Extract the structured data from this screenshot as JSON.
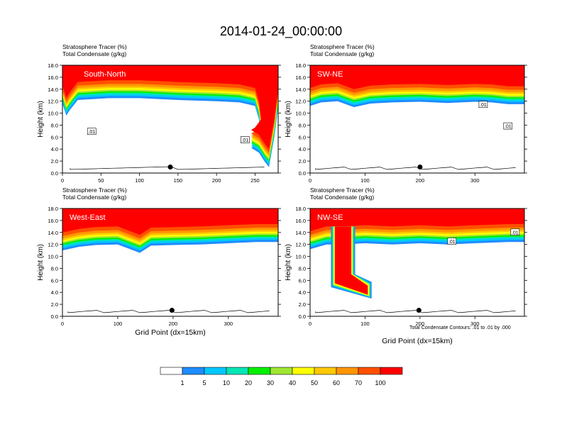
{
  "page": {
    "title": "2014-01-24_00:00:00"
  },
  "colorbar": {
    "labels": [
      "1",
      "5",
      "10",
      "20",
      "30",
      "40",
      "50",
      "60",
      "70",
      "100"
    ],
    "colors": [
      "#ffffff",
      "#1e8cff",
      "#00c8ff",
      "#00e6b4",
      "#00f000",
      "#a0e632",
      "#ffff00",
      "#ffc800",
      "#ff9600",
      "#ff5000",
      "#ff0000"
    ]
  },
  "footnote": "Total Condensate Contours: .01 to .01 by .000",
  "chart_data": [
    {
      "type": "area",
      "panel": "South-North",
      "header_line1": "Stratosphere Tracer   (%)",
      "header_line2": "Total Condensate   (g/kg)",
      "ylabel": "Height (km)",
      "xlabel": "",
      "xlim": [
        0,
        280
      ],
      "ylim": [
        0,
        18
      ],
      "xticks": [
        "0",
        "50",
        "100",
        "150",
        "200",
        "250"
      ],
      "xtick_values": [
        0,
        50,
        100,
        150,
        200,
        250
      ],
      "yticks": [
        "0.0",
        "2.0",
        "4.0",
        "6.0",
        "8.0",
        "10.0",
        "12.0",
        "14.0",
        "16.0",
        "18.0"
      ],
      "tracer_base_km": [
        [
          0,
          14.6
        ],
        [
          5,
          12.6
        ],
        [
          10,
          13.6
        ],
        [
          20,
          15.2
        ],
        [
          60,
          15.5
        ],
        [
          100,
          15.5
        ],
        [
          150,
          15.2
        ],
        [
          200,
          15.0
        ],
        [
          230,
          14.8
        ],
        [
          250,
          14.2
        ],
        [
          255,
          12.0
        ],
        [
          258,
          9.0
        ],
        [
          250,
          7.6
        ],
        [
          245,
          7.2
        ],
        [
          255,
          6.4
        ],
        [
          262,
          5.0
        ],
        [
          268,
          4.0
        ],
        [
          275,
          9.0
        ],
        [
          280,
          14.0
        ]
      ],
      "intrusions": [],
      "contour_labels": [
        {
          "x": 38,
          "y": 6.9,
          "label": ".01"
        },
        {
          "x": 237,
          "y": 5.5,
          "label": ".01"
        }
      ],
      "marker": {
        "x": 140,
        "y": 1.0
      },
      "yaxis_labels": true
    },
    {
      "type": "area",
      "panel": "SW-NE",
      "header_line1": "Stratosphere Tracer   (%)",
      "header_line2": "Total Condensate   (g/kg)",
      "ylabel": "Height (km)",
      "xlabel": "",
      "xlim": [
        0,
        390
      ],
      "ylim": [
        0,
        18
      ],
      "xticks": [
        "0",
        "100",
        "200",
        "300"
      ],
      "xtick_values": [
        0,
        100,
        200,
        300
      ],
      "yticks": [
        "0.0",
        "2.0",
        "4.0",
        "6.0",
        "8.0",
        "10.0",
        "12.0",
        "14.0",
        "16.0",
        "18.0"
      ],
      "tracer_base_km": [
        [
          0,
          14.2
        ],
        [
          20,
          14.8
        ],
        [
          50,
          15.0
        ],
        [
          80,
          14.0
        ],
        [
          110,
          14.6
        ],
        [
          150,
          14.8
        ],
        [
          200,
          14.9
        ],
        [
          250,
          14.7
        ],
        [
          300,
          14.9
        ],
        [
          330,
          14.8
        ],
        [
          360,
          14.5
        ],
        [
          390,
          14.5
        ]
      ],
      "intrusions": [],
      "contour_labels": [
        {
          "x": 315,
          "y": 11.4,
          "label": ".01"
        },
        {
          "x": 360,
          "y": 7.8,
          "label": ".01"
        }
      ],
      "marker": {
        "x": 200,
        "y": 1.0
      },
      "yaxis_labels": true
    },
    {
      "type": "area",
      "panel": "West-East",
      "header_line1": "Stratosphere Tracer   (%)",
      "header_line2": "Total Condensate   (g/kg)",
      "ylabel": "Height (km)",
      "xlabel": "Grid Point (dx=15km)",
      "xlim": [
        0,
        390
      ],
      "ylim": [
        0,
        18
      ],
      "xticks": [
        "0",
        "100",
        "200",
        "300"
      ],
      "xtick_values": [
        0,
        100,
        200,
        300
      ],
      "yticks": [
        "0.0",
        "2.0",
        "4.0",
        "6.0",
        "8.0",
        "10.0",
        "12.0",
        "14.0",
        "16.0",
        "18.0"
      ],
      "tracer_base_km": [
        [
          0,
          14.0
        ],
        [
          30,
          14.6
        ],
        [
          60,
          14.9
        ],
        [
          100,
          15.0
        ],
        [
          140,
          13.6
        ],
        [
          160,
          14.8
        ],
        [
          200,
          14.9
        ],
        [
          250,
          15.0
        ],
        [
          300,
          15.2
        ],
        [
          350,
          15.4
        ],
        [
          390,
          15.4
        ]
      ],
      "intrusions": [],
      "contour_labels": [],
      "marker": {
        "x": 198,
        "y": 1.0
      },
      "yaxis_labels": true
    },
    {
      "type": "area",
      "panel": "NW-SE",
      "header_line1": "Stratosphere Tracer   (%)",
      "header_line2": "Total Condensate   (g/kg)",
      "ylabel": "Height (km)",
      "xlabel": "Grid Point (dx=15km)",
      "xlim": [
        0,
        390
      ],
      "ylim": [
        0,
        18
      ],
      "xticks": [
        "0",
        "100",
        "200",
        "300"
      ],
      "xtick_values": [
        0,
        100,
        200,
        300
      ],
      "yticks": [
        "0.0",
        "2.0",
        "4.0",
        "6.0",
        "8.0",
        "10.0",
        "12.0",
        "14.0",
        "16.0",
        "18.0"
      ],
      "tracer_base_km": [
        [
          0,
          14.2
        ],
        [
          30,
          15.0
        ],
        [
          60,
          15.0
        ],
        [
          100,
          15.2
        ],
        [
          150,
          15.0
        ],
        [
          200,
          15.2
        ],
        [
          250,
          15.0
        ],
        [
          300,
          15.2
        ],
        [
          360,
          15.4
        ],
        [
          390,
          15.4
        ]
      ],
      "intrusions": [
        {
          "x0": 45,
          "x1": 75,
          "top": 15.0,
          "bottom": 5.5,
          "tail_to_x": 105,
          "tail_bottom": 3.6
        }
      ],
      "contour_labels": [
        {
          "x": 258,
          "y": 12.5,
          "label": ".01"
        },
        {
          "x": 373,
          "y": 14.0,
          "label": ".01"
        }
      ],
      "marker": {
        "x": 198,
        "y": 1.0
      },
      "yaxis_labels": true
    }
  ]
}
